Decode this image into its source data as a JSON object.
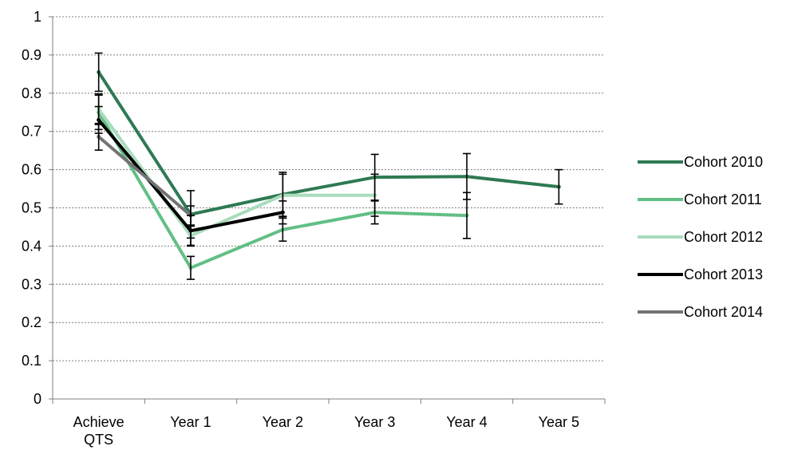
{
  "chart_data": {
    "type": "line",
    "title": "",
    "xlabel": "",
    "ylabel": "",
    "categories": [
      "Achieve QTS",
      "Year 1",
      "Year 2",
      "Year 3",
      "Year 4",
      "Year 5"
    ],
    "ylim": [
      0,
      1
    ],
    "yticks": [
      "0",
      "0.1",
      "0.2",
      "0.3",
      "0.4",
      "0.5",
      "0.6",
      "0.7",
      "0.8",
      "0.9",
      "1"
    ],
    "grid": "horizontal dotted",
    "legend_position": "right",
    "series": [
      {
        "name": "Cohort 2010",
        "color": "#2e7a53",
        "values": [
          0.855,
          0.483,
          0.535,
          0.58,
          0.582,
          0.555
        ],
        "error": [
          0.05,
          0.062,
          0.058,
          0.06,
          0.06,
          0.045
        ]
      },
      {
        "name": "Cohort 2011",
        "color": "#62bf85",
        "values": [
          0.75,
          0.343,
          0.443,
          0.488,
          0.48,
          null
        ],
        "error": [
          0.045,
          0.03,
          0.03,
          0.03,
          0.06,
          null
        ]
      },
      {
        "name": "Cohort 2012",
        "color": "#a8dcbd",
        "values": [
          0.758,
          0.427,
          0.533,
          0.533,
          null,
          null
        ],
        "error": [
          0.04,
          0.025,
          0.055,
          0.055,
          null,
          null
        ]
      },
      {
        "name": "Cohort 2013",
        "color": "#000000",
        "values": [
          0.73,
          0.44,
          0.488,
          null,
          null,
          null
        ],
        "error": [
          0.035,
          0.04,
          0.03,
          null,
          null,
          null
        ]
      },
      {
        "name": "Cohort 2014",
        "color": "#737373",
        "values": [
          0.686,
          0.48,
          null,
          null,
          null,
          null
        ],
        "error": [
          0.035,
          0.025,
          null,
          null,
          null,
          null
        ]
      }
    ]
  }
}
